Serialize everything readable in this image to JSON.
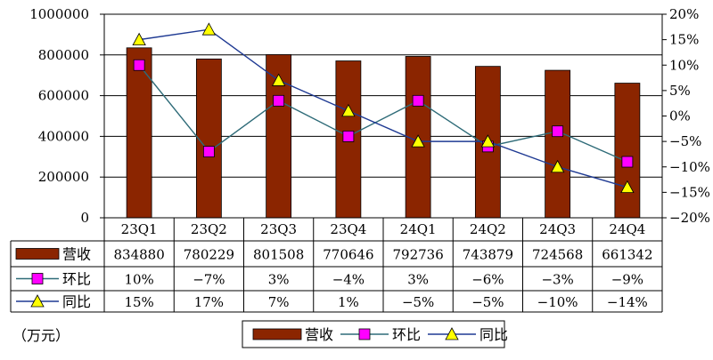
{
  "chart_data": {
    "type": "bar",
    "categories": [
      "23Q1",
      "23Q2",
      "23Q3",
      "23Q4",
      "24Q1",
      "24Q2",
      "24Q3",
      "24Q4"
    ],
    "left_axis": {
      "ylim": [
        0,
        1000000
      ],
      "ticks": [
        "0",
        "200000",
        "400000",
        "600000",
        "800000",
        "1000000"
      ]
    },
    "right_axis": {
      "ylim": [
        -20,
        20
      ],
      "ticks": [
        "-20%",
        "-15%",
        "-10%",
        "-5%",
        "0%",
        "5%",
        "10%",
        "15%",
        "20%"
      ]
    },
    "grid": true,
    "series": [
      {
        "name": "营收",
        "kind": "bar",
        "axis": "left",
        "color": "#8B2500",
        "values": [
          834880,
          780229,
          801508,
          770646,
          792736,
          743879,
          724568,
          661342
        ],
        "labels": [
          "834880",
          "780229",
          "801508",
          "770646",
          "792736",
          "743879",
          "724568",
          "661342"
        ]
      },
      {
        "name": "环比",
        "kind": "line",
        "axis": "right",
        "color": "#2E6B78",
        "marker": "square",
        "marker_color": "#FF00FF",
        "values": [
          10,
          -7,
          3,
          -4,
          3,
          -6,
          -3,
          -9
        ],
        "labels": [
          "10%",
          "-7%",
          "3%",
          "-4%",
          "3%",
          "-6%",
          "-3%",
          "-9%"
        ]
      },
      {
        "name": "同比",
        "kind": "line",
        "axis": "right",
        "color": "#1F3A93",
        "marker": "triangle",
        "marker_color": "#FFFF00",
        "values": [
          15,
          17,
          7,
          1,
          -5,
          -5,
          -10,
          -14
        ],
        "labels": [
          "15%",
          "17%",
          "7%",
          "1%",
          "-5%",
          "-5%",
          "-10%",
          "-14%"
        ]
      }
    ],
    "unit": "（万元）",
    "legend": {
      "position": "bottom",
      "entries": [
        "营收",
        "环比",
        "同比"
      ]
    }
  }
}
